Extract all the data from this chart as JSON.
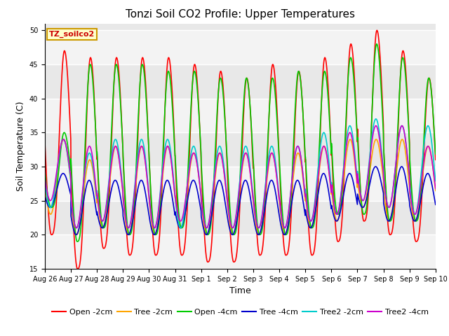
{
  "title": "Tonzi Soil CO2 Profile: Upper Temperatures",
  "ylabel": "Soil Temperature (C)",
  "xlabel": "Time",
  "ylim": [
    15,
    51
  ],
  "yticks": [
    15,
    20,
    25,
    30,
    35,
    40,
    45,
    50
  ],
  "background_color": "#ffffff",
  "plot_bg_color": "#e8e8e8",
  "grid_color": "#ffffff",
  "series": [
    {
      "label": "Open -2cm",
      "color": "#ff0000",
      "lw": 1.2
    },
    {
      "label": "Tree -2cm",
      "color": "#ffa500",
      "lw": 1.2
    },
    {
      "label": "Open -4cm",
      "color": "#00cc00",
      "lw": 1.2
    },
    {
      "label": "Tree -4cm",
      "color": "#0000cc",
      "lw": 1.2
    },
    {
      "label": "Tree2 -2cm",
      "color": "#00cccc",
      "lw": 1.2
    },
    {
      "label": "Tree2 -4cm",
      "color": "#cc00cc",
      "lw": 1.2
    }
  ],
  "tick_labels": [
    "Aug 26",
    "Aug 27",
    "Aug 28",
    "Aug 29",
    "Aug 30",
    "Aug 31",
    "Sep 1",
    "Sep 2",
    "Sep 3",
    "Sep 4",
    "Sep 5",
    "Sep 6",
    "Sep 7",
    "Sep 8",
    "Sep 9",
    "Sep 10"
  ],
  "title_fontsize": 11,
  "legend_fontsize": 8,
  "tick_fontsize": 7,
  "label_fontsize": 9,
  "annotation_text": "TZ_soilco2",
  "annotation_color": "#cc0000",
  "annotation_bg": "#ffffcc",
  "annotation_border": "#cc9900",
  "open2_mins": [
    20,
    15,
    18,
    17,
    17,
    17,
    16,
    16,
    17,
    17,
    17,
    19,
    22,
    20,
    19
  ],
  "open2_maxs": [
    47,
    46,
    46,
    46,
    46,
    45,
    44,
    43,
    45,
    44,
    46,
    48,
    50,
    47,
    43
  ],
  "tree2_mins": [
    23,
    20,
    21,
    20,
    20,
    21,
    20,
    20,
    20,
    20,
    21,
    22,
    24,
    22,
    22
  ],
  "tree2_maxs": [
    34,
    31,
    33,
    33,
    33,
    32,
    32,
    32,
    32,
    32,
    33,
    34,
    34,
    34,
    33
  ],
  "open4_mins": [
    24,
    19,
    21,
    20,
    20,
    21,
    20,
    20,
    20,
    20,
    21,
    23,
    23,
    22,
    22
  ],
  "open4_maxs": [
    35,
    45,
    45,
    45,
    44,
    44,
    43,
    43,
    43,
    44,
    44,
    46,
    48,
    46,
    43
  ],
  "tree4_mins": [
    24,
    20,
    21,
    20,
    20,
    21,
    20,
    20,
    20,
    20,
    21,
    22,
    24,
    22,
    22
  ],
  "tree4_maxs": [
    29,
    28,
    28,
    28,
    28,
    28,
    28,
    28,
    28,
    28,
    29,
    29,
    30,
    30,
    29
  ],
  "tree2_2_mins": [
    24,
    21,
    22,
    21,
    21,
    21,
    21,
    21,
    21,
    21,
    22,
    23,
    25,
    24,
    23
  ],
  "tree2_2_maxs": [
    34,
    32,
    34,
    34,
    34,
    33,
    33,
    33,
    33,
    33,
    35,
    36,
    37,
    36,
    36
  ],
  "tree2_4_mins": [
    25,
    21,
    22,
    21,
    21,
    22,
    21,
    21,
    21,
    21,
    22,
    23,
    25,
    24,
    23
  ],
  "tree2_4_maxs": [
    34,
    33,
    33,
    33,
    33,
    32,
    32,
    32,
    32,
    33,
    33,
    35,
    36,
    36,
    33
  ]
}
